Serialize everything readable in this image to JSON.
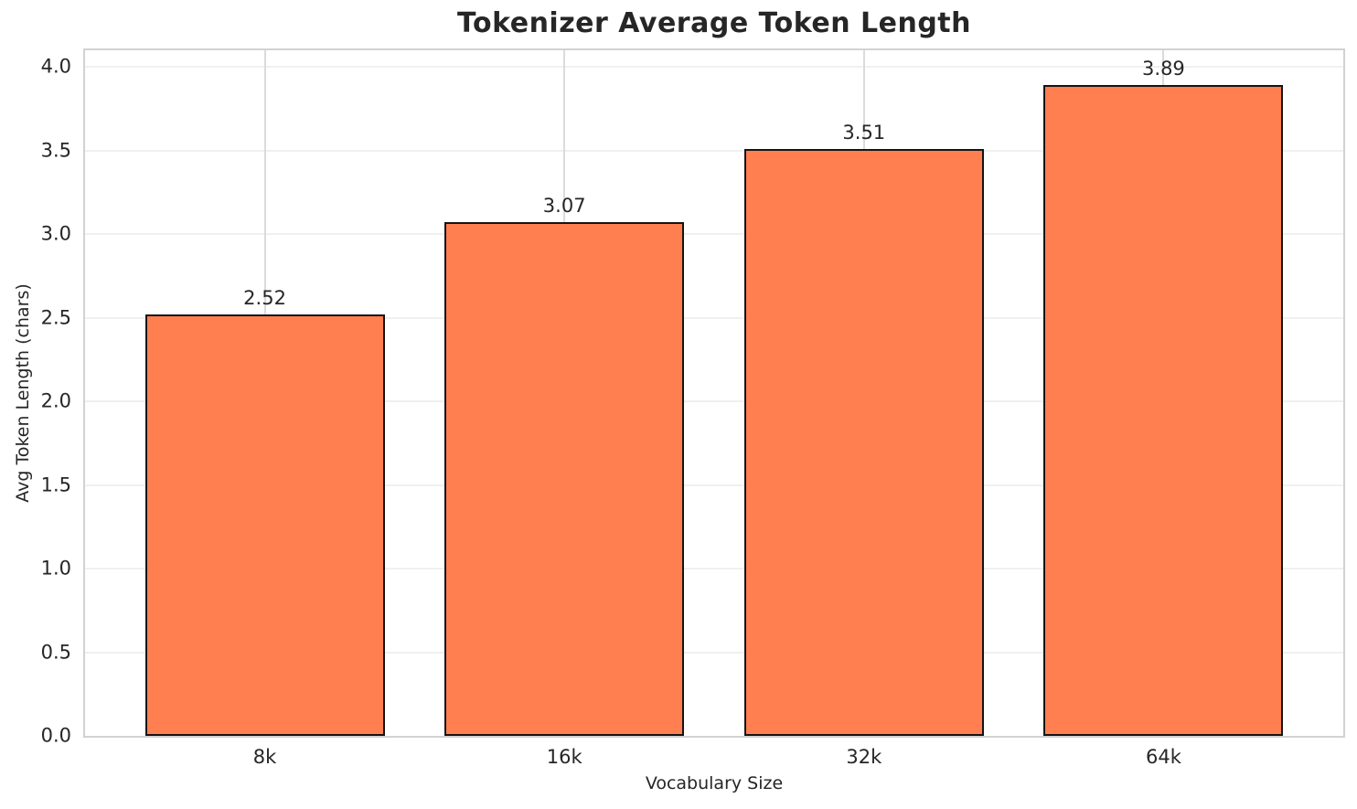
{
  "chart_data": {
    "type": "bar",
    "title": "Tokenizer Average Token Length",
    "categories": [
      "8k",
      "16k",
      "32k",
      "64k"
    ],
    "values": [
      2.52,
      3.07,
      3.51,
      3.89
    ],
    "value_labels": [
      "2.52",
      "3.07",
      "3.51",
      "3.89"
    ],
    "xlabel": "Vocabulary Size",
    "ylabel": "Avg Token Length (chars)",
    "ylim": [
      0,
      4.1
    ],
    "yticks": [
      0.0,
      0.5,
      1.0,
      1.5,
      2.0,
      2.5,
      3.0,
      3.5,
      4.0
    ],
    "ytick_labels": [
      "0.0",
      "0.5",
      "1.0",
      "1.5",
      "2.0",
      "2.5",
      "3.0",
      "3.5",
      "4.0"
    ],
    "x_edge_pad": 0.6,
    "bar_width": 0.8,
    "grid": true,
    "legend": null,
    "colors": {
      "bar_fill": "#FF7F50",
      "bar_edge": "#141414",
      "grid_horizontal": "#F0F0F0",
      "grid_vertical": "#DBDBDB",
      "spine": "#D2D2D2",
      "text": "#262626"
    }
  }
}
